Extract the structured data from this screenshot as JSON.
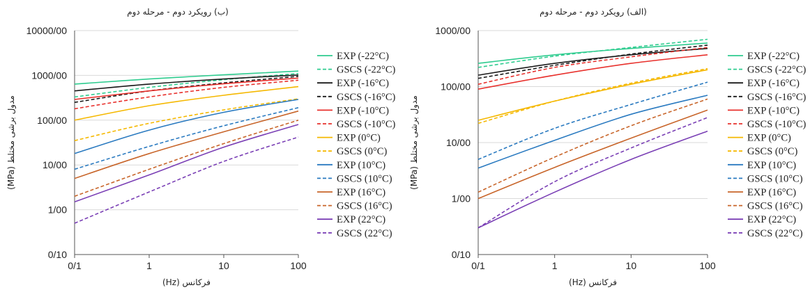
{
  "legend": [
    {
      "name": "EXP (-22°C)",
      "color": "#2ecc8f",
      "dash": false
    },
    {
      "name": "GSCS (-22°C)",
      "color": "#2ecc8f",
      "dash": true
    },
    {
      "name": "EXP (-16°C)",
      "color": "#1a1a1a",
      "dash": false
    },
    {
      "name": "GSCS (-16°C)",
      "color": "#1a1a1a",
      "dash": true
    },
    {
      "name": "EXP (-10°C)",
      "color": "#e8302c",
      "dash": false
    },
    {
      "name": "GSCS (-10°C)",
      "color": "#e8302c",
      "dash": true
    },
    {
      "name": "EXP (0°C)",
      "color": "#f5b800",
      "dash": false
    },
    {
      "name": "GSCS (0°C)",
      "color": "#f5b800",
      "dash": true
    },
    {
      "name": "EXP (10°C)",
      "color": "#2a7ac0",
      "dash": false
    },
    {
      "name": "GSCS (10°C)",
      "color": "#2a7ac0",
      "dash": true
    },
    {
      "name": "EXP (16°C)",
      "color": "#c8652a",
      "dash": false
    },
    {
      "name": "GSCS (16°C)",
      "color": "#c8652a",
      "dash": true
    },
    {
      "name": "EXP (22°C)",
      "color": "#7a3fb5",
      "dash": false
    },
    {
      "name": "GSCS (22°C)",
      "color": "#7a3fb5",
      "dash": true
    }
  ],
  "chart_data": [
    {
      "type": "line",
      "title": "(ب) رویکرد دوم - مرحله دوم",
      "xlabel": "فرکانس (Hz)",
      "ylabel": "مدول برشی مختلط (MPa)",
      "x_scale": "log",
      "y_scale": "log",
      "xlim": [
        0.1,
        100
      ],
      "ylim": [
        0.1,
        10000
      ],
      "x_ticks": [
        "0/1",
        "1",
        "10",
        "100"
      ],
      "y_ticks": [
        "0/10",
        "1/00",
        "10/00",
        "100/00",
        "1000/00",
        "10000/00"
      ],
      "x": [
        0.1,
        1,
        10,
        100
      ],
      "series": [
        {
          "name": "EXP (-22°C)",
          "values": [
            640,
            830,
            1030,
            1250
          ]
        },
        {
          "name": "GSCS (-22°C)",
          "values": [
            330,
            540,
            800,
            1100
          ]
        },
        {
          "name": "EXP (-16°C)",
          "values": [
            450,
            640,
            830,
            1020
          ]
        },
        {
          "name": "GSCS (-16°C)",
          "values": [
            250,
            450,
            680,
            950
          ]
        },
        {
          "name": "EXP (-10°C)",
          "values": [
            290,
            450,
            650,
            870
          ]
        },
        {
          "name": "GSCS (-10°C)",
          "values": [
            180,
            330,
            540,
            780
          ]
        },
        {
          "name": "EXP (0°C)",
          "values": [
            100,
            210,
            360,
            560
          ]
        },
        {
          "name": "GSCS (0°C)",
          "values": [
            35,
            85,
            170,
            300
          ]
        },
        {
          "name": "EXP (10°C)",
          "values": [
            18,
            60,
            150,
            290
          ]
        },
        {
          "name": "GSCS (10°C)",
          "values": [
            8,
            26,
            75,
            190
          ]
        },
        {
          "name": "EXP (16°C)",
          "values": [
            5,
            18,
            55,
            160
          ]
        },
        {
          "name": "GSCS (16°C)",
          "values": [
            2,
            8,
            30,
            100
          ]
        },
        {
          "name": "EXP (22°C)",
          "values": [
            1.5,
            6,
            25,
            80
          ]
        },
        {
          "name": "GSCS (22°C)",
          "values": [
            0.5,
            2.5,
            12,
            42
          ]
        }
      ]
    },
    {
      "type": "line",
      "title": "(الف) رویکرد دوم - مرحله دوم",
      "xlabel": "فرکانس (Hz)",
      "ylabel": "مدول برشی مختلط (MPa)",
      "x_scale": "log",
      "y_scale": "log",
      "xlim": [
        0.1,
        100
      ],
      "ylim": [
        0.1,
        1000
      ],
      "x_ticks": [
        "0/1",
        "1",
        "10",
        "100"
      ],
      "y_ticks": [
        "0/10",
        "1/00",
        "10/00",
        "100/00",
        "1000/00"
      ],
      "x": [
        0.1,
        1,
        10,
        100
      ],
      "series": [
        {
          "name": "EXP (-22°C)",
          "values": [
            260,
            370,
            480,
            600
          ]
        },
        {
          "name": "GSCS (-22°C)",
          "values": [
            220,
            350,
            500,
            700
          ]
        },
        {
          "name": "EXP (-16°C)",
          "values": [
            160,
            260,
            370,
            480
          ]
        },
        {
          "name": "GSCS (-16°C)",
          "values": [
            140,
            240,
            380,
            550
          ]
        },
        {
          "name": "EXP (-10°C)",
          "values": [
            90,
            160,
            260,
            370
          ]
        },
        {
          "name": "GSCS (-10°C)",
          "values": [
            110,
            220,
            340,
            500
          ]
        },
        {
          "name": "EXP (0°C)",
          "values": [
            25,
            55,
            110,
            200
          ]
        },
        {
          "name": "GSCS (0°C)",
          "values": [
            22,
            55,
            115,
            210
          ]
        },
        {
          "name": "EXP (10°C)",
          "values": [
            3.5,
            11,
            32,
            70
          ]
        },
        {
          "name": "GSCS (10°C)",
          "values": [
            5,
            18,
            48,
            120
          ]
        },
        {
          "name": "EXP (16°C)",
          "values": [
            1,
            3.6,
            12,
            38
          ]
        },
        {
          "name": "GSCS (16°C)",
          "values": [
            1.3,
            5.5,
            20,
            60
          ]
        },
        {
          "name": "EXP (22°C)",
          "values": [
            0.3,
            1.3,
            5,
            16
          ]
        },
        {
          "name": "GSCS (22°C)",
          "values": [
            0.3,
            2,
            8,
            28
          ]
        }
      ]
    }
  ]
}
